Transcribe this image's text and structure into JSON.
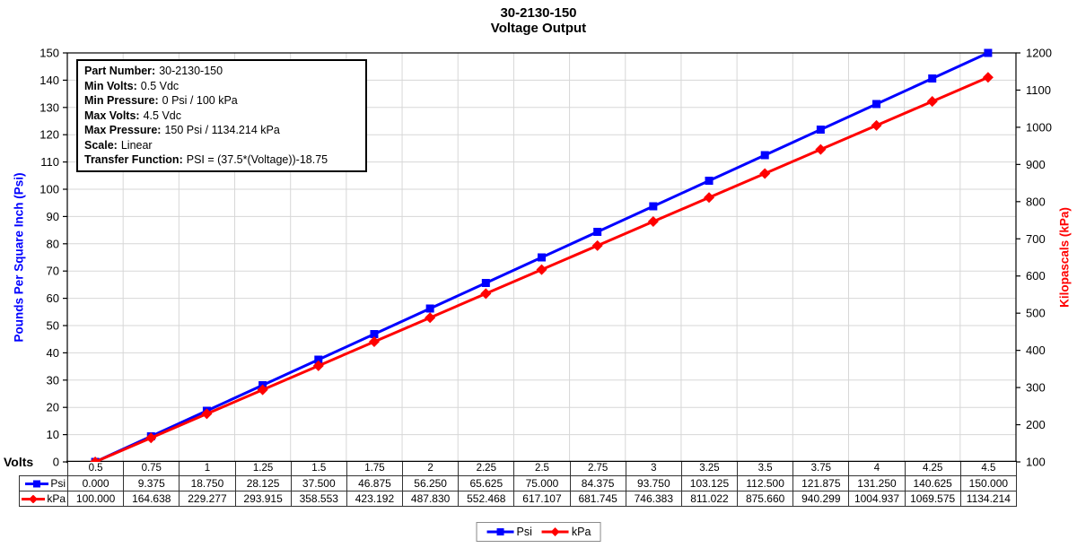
{
  "title": {
    "line1": "30-2130-150",
    "line2": "Voltage Output"
  },
  "info_box": {
    "lines": [
      {
        "label": "Part Number:",
        "value": "30-2130-150"
      },
      {
        "label": "Min Volts:",
        "value": "0.5 Vdc"
      },
      {
        "label": "Min Pressure:",
        "value": "0 Psi / 100 kPa"
      },
      {
        "label": "Max Volts:",
        "value": "4.5 Vdc"
      },
      {
        "label": "Max Pressure:",
        "value": "150 Psi / 1134.214 kPa"
      },
      {
        "label": "Scale:",
        "value": "Linear"
      },
      {
        "label": "Transfer Function:",
        "value": "PSI = (37.5*(Voltage))-18.75"
      }
    ]
  },
  "chart_data": {
    "type": "line",
    "title": "30-2130-150 Voltage Output",
    "x": [
      0.5,
      0.75,
      1,
      1.25,
      1.5,
      1.75,
      2,
      2.25,
      2.5,
      2.75,
      3,
      3.25,
      3.5,
      3.75,
      4,
      4.25,
      4.5
    ],
    "series": [
      {
        "name": "Psi",
        "color": "#0000ff",
        "marker": "square",
        "axis": "left",
        "values": [
          0,
          9.375,
          18.75,
          28.125,
          37.5,
          46.875,
          56.25,
          65.625,
          75,
          84.375,
          93.75,
          103.125,
          112.5,
          121.875,
          131.25,
          140.625,
          150
        ]
      },
      {
        "name": "kPa",
        "color": "#ff0000",
        "marker": "diamond",
        "axis": "right",
        "values": [
          100,
          164.638,
          229.277,
          293.915,
          358.553,
          423.192,
          487.83,
          552.468,
          617.107,
          681.745,
          746.383,
          811.022,
          875.66,
          940.299,
          1004.937,
          1069.575,
          1134.214
        ]
      }
    ],
    "left_axis": {
      "title": "Pounds Per Square Inch (Psi)",
      "min": 0,
      "max": 150,
      "step": 10,
      "color": "#0000ff"
    },
    "right_axis": {
      "title": "Kilopascals (kPa)",
      "min": 100,
      "max": 1200,
      "step": 100,
      "color": "#ff0000"
    },
    "x_axis": {
      "title": "Volts",
      "grid": true
    },
    "grid_color": "#d7d7d7",
    "legend_position": "bottom"
  },
  "table": {
    "volts_row": [
      "0.5",
      "0.75",
      "1",
      "1.25",
      "1.5",
      "1.75",
      "2",
      "2.25",
      "2.5",
      "2.75",
      "3",
      "3.25",
      "3.5",
      "3.75",
      "4",
      "4.25",
      "4.5"
    ],
    "rows": [
      {
        "header": "Psi",
        "cells": [
          "0.000",
          "9.375",
          "18.750",
          "28.125",
          "37.500",
          "46.875",
          "56.250",
          "65.625",
          "75.000",
          "84.375",
          "93.750",
          "103.125",
          "112.500",
          "121.875",
          "131.250",
          "140.625",
          "150.000"
        ]
      },
      {
        "header": "kPa",
        "cells": [
          "100.000",
          "164.638",
          "229.277",
          "293.915",
          "358.553",
          "423.192",
          "487.830",
          "552.468",
          "617.107",
          "681.745",
          "746.383",
          "811.022",
          "875.660",
          "940.299",
          "1004.937",
          "1069.575",
          "1134.214"
        ]
      }
    ]
  },
  "legend": {
    "items": [
      {
        "label": "Psi"
      },
      {
        "label": "kPa"
      }
    ]
  }
}
